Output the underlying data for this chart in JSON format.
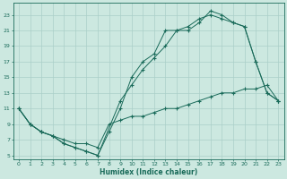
{
  "xlabel": "Humidex (Indice chaleur)",
  "bg_color": "#cce8e0",
  "line_color": "#1a6b5a",
  "grid_color": "#aacfc8",
  "xlim": [
    -0.5,
    23.5
  ],
  "ylim": [
    4.5,
    24.5
  ],
  "xticks": [
    0,
    1,
    2,
    3,
    4,
    5,
    6,
    7,
    8,
    9,
    10,
    11,
    12,
    13,
    14,
    15,
    16,
    17,
    18,
    19,
    20,
    21,
    22,
    23
  ],
  "yticks": [
    5,
    7,
    9,
    11,
    13,
    15,
    17,
    19,
    21,
    23
  ],
  "line1_x": [
    0,
    1,
    2,
    3,
    4,
    5,
    6,
    7,
    8,
    9,
    10,
    11,
    12,
    13,
    14,
    15,
    16,
    17,
    18,
    19,
    20,
    21,
    22,
    23
  ],
  "line1_y": [
    11,
    9,
    8,
    7.5,
    6.5,
    6,
    5.5,
    5,
    8,
    11,
    15,
    17,
    18,
    21,
    21,
    21,
    22,
    23.5,
    23,
    22,
    21.5,
    17,
    13,
    12
  ],
  "line2_x": [
    0,
    1,
    2,
    3,
    4,
    5,
    6,
    7,
    9,
    10,
    11,
    12,
    13,
    14,
    15,
    16,
    17,
    18,
    19,
    20,
    21,
    22,
    23
  ],
  "line2_y": [
    11,
    9,
    8,
    7.5,
    6.5,
    6,
    5.5,
    5,
    12,
    14,
    16,
    17.5,
    19,
    21,
    21.5,
    22.5,
    23,
    22.5,
    22,
    21.5,
    17,
    13,
    12
  ],
  "line3_x": [
    0,
    1,
    2,
    3,
    4,
    5,
    6,
    7,
    8,
    9,
    10,
    11,
    12,
    13,
    14,
    15,
    16,
    17,
    18,
    19,
    20,
    21,
    22,
    23
  ],
  "line3_y": [
    11,
    9,
    8,
    7.5,
    7,
    6.5,
    6.5,
    6,
    9,
    9.5,
    10,
    10,
    10.5,
    11,
    11,
    11.5,
    12,
    12.5,
    13,
    13,
    13.5,
    13.5,
    14,
    12
  ]
}
